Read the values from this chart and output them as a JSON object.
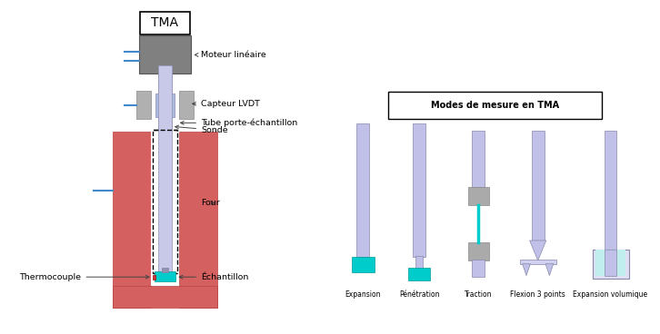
{
  "bg_color": "#ffffff",
  "tma_label": "TMA",
  "motor_color": "#808080",
  "lvdt_color": "#aabbdd",
  "lvdt_gray": "#b0b0b0",
  "probe_color": "#c8c8e8",
  "furnace_color": "#d46060",
  "sample_color": "#00cccc",
  "thermocouple_color": "#cc3333",
  "blue_line": "#4488cc",
  "labels": {
    "motor": "Moteur linéaire",
    "lvdt": "Capteur LVDT",
    "probe": "Sonde",
    "tube": "Tube porte-échantillon",
    "furnace": "Four",
    "thermocouple": "Thermocouple",
    "sample": "Échantillon"
  },
  "right_title": "Modes de mesure en TMA",
  "probe_modes": [
    "Expansion",
    "Pénétration",
    "Traction",
    "Flexion 3 points",
    "Expansion volumique"
  ],
  "lavender": "#c0c0e8",
  "teal": "#00cccc",
  "light_teal": "#c0eeee",
  "gray_clamp": "#aaaaaa"
}
